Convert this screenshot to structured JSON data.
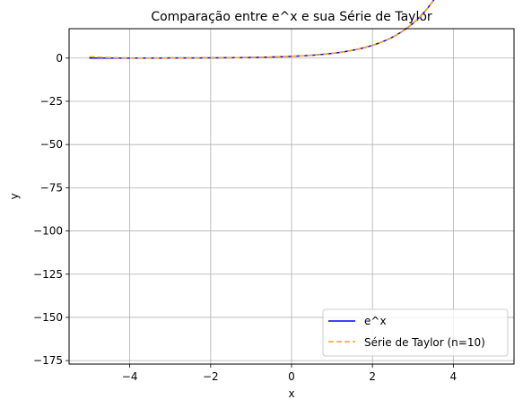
{
  "chart_data": {
    "type": "line",
    "title": "Comparação entre e^x e sua Série de Taylor",
    "xlabel": "x",
    "ylabel": "y",
    "xlim": [
      -5.5,
      5.5
    ],
    "ylim": [
      -177,
      17
    ],
    "xticks": [
      -4,
      -2,
      0,
      2,
      4
    ],
    "yticks": [
      0,
      -25,
      -50,
      -75,
      -100,
      -125,
      -150,
      -175
    ],
    "xtick_labels": [
      "−4",
      "−2",
      "0",
      "2",
      "4"
    ],
    "ytick_labels": [
      "0",
      "−25",
      "−50",
      "−75",
      "−100",
      "−125",
      "−150",
      "−175"
    ],
    "grid": true,
    "legend_position": "lower-right",
    "x_domain": [
      -5,
      5
    ],
    "series": [
      {
        "name": "e^x",
        "function": "exp",
        "color": "#0000ff",
        "style": "solid"
      },
      {
        "name": "Série de Taylor (n=10)",
        "function": "taylor_exp",
        "order": 10,
        "color": "#ffa500",
        "style": "dashed"
      }
    ]
  }
}
